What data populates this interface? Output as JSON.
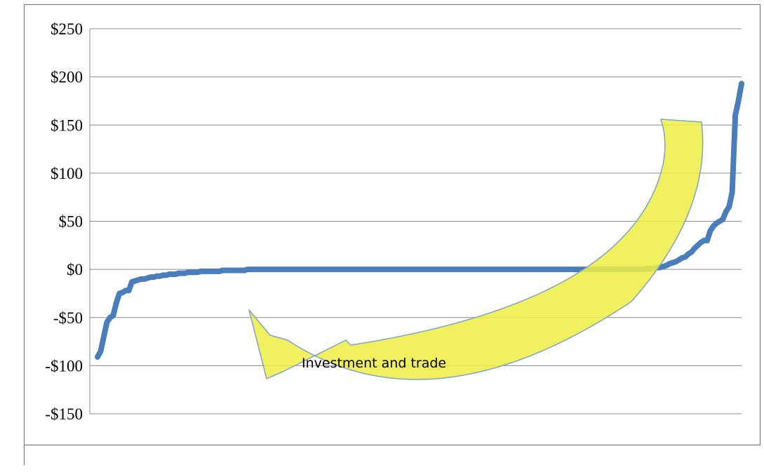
{
  "chart_data": {
    "type": "line",
    "title": "",
    "xlabel": "",
    "ylabel": "",
    "ylim": [
      -150,
      250
    ],
    "yticks": [
      250,
      200,
      150,
      100,
      50,
      0,
      -50,
      -100,
      -150
    ],
    "ytick_labels": [
      "$250",
      "$200",
      "$150",
      "$100",
      "$50",
      "$0",
      "-$50",
      "-$100",
      "-$150"
    ],
    "grid": true,
    "legend": "none",
    "series": [
      {
        "color": "#4a7ebb",
        "values": [
          -91,
          -85,
          -70,
          -55,
          -50,
          -48,
          -35,
          -25,
          -24,
          -22,
          -22,
          -13,
          -12,
          -11,
          -10,
          -10,
          -9,
          -8,
          -8,
          -7,
          -7,
          -6,
          -6,
          -5,
          -5,
          -5,
          -4,
          -4,
          -4,
          -3,
          -3,
          -3,
          -3,
          -2,
          -2,
          -2,
          -2,
          -2,
          -2,
          -2,
          -1,
          -1,
          -1,
          -1,
          -1,
          -1,
          -1,
          -1,
          0,
          0,
          0,
          0,
          0,
          0,
          0,
          0,
          0,
          0,
          0,
          0,
          0,
          0,
          0,
          0,
          0,
          0,
          0,
          0,
          0,
          0,
          0,
          0,
          0,
          0,
          0,
          0,
          0,
          0,
          0,
          0,
          0,
          0,
          0,
          0,
          0,
          0,
          0,
          0,
          0,
          0,
          0,
          0,
          0,
          0,
          0,
          0,
          0,
          0,
          0,
          0,
          0,
          0,
          0,
          0,
          0,
          0,
          0,
          0,
          0,
          0,
          0,
          0,
          0,
          0,
          0,
          0,
          0,
          0,
          0,
          0,
          0,
          0,
          0,
          0,
          0,
          0,
          0,
          0,
          0,
          0,
          0,
          0,
          0,
          0,
          0,
          0,
          0,
          0,
          0,
          0,
          0,
          0,
          0,
          0,
          0,
          0,
          0,
          0,
          0,
          0,
          0,
          0,
          0,
          0,
          0,
          0,
          0,
          0,
          0,
          0,
          0,
          0,
          0,
          0,
          0,
          0,
          0,
          0,
          0,
          0,
          0,
          0,
          0,
          0,
          0,
          0,
          1,
          1,
          1,
          2,
          2,
          3,
          4,
          6,
          7,
          8,
          10,
          12,
          13,
          16,
          18,
          22,
          25,
          28,
          30,
          30,
          40,
          45,
          48,
          50,
          52,
          60,
          65,
          80,
          160,
          175,
          193
        ]
      }
    ],
    "annotations": [
      {
        "text": "Investment and trade",
        "shape": "curved-arrow",
        "color": "#eeee44"
      }
    ]
  }
}
